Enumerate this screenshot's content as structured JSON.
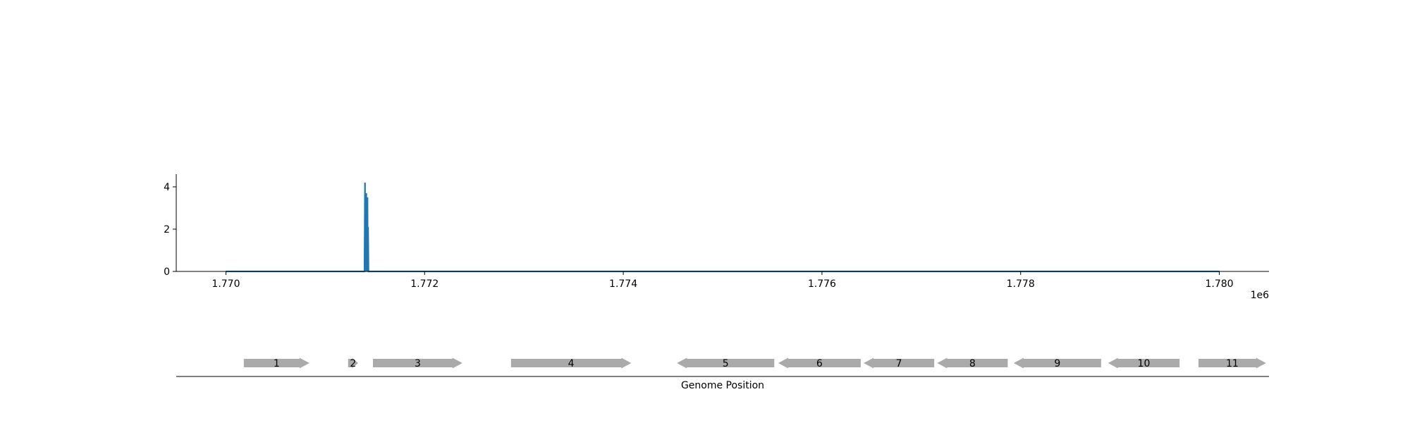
{
  "chart_data": [
    {
      "type": "line",
      "x_multiplier_label": "1e6",
      "x_ticks": [
        1770000,
        1772000,
        1774000,
        1776000,
        1778000,
        1780000
      ],
      "x_tick_labels": [
        "1.770",
        "1.772",
        "1.774",
        "1.776",
        "1.778",
        "1.780"
      ],
      "y_ticks": [
        0,
        2,
        4
      ],
      "y_tick_labels": [
        "0",
        "2",
        "4"
      ],
      "xlim": [
        1769500,
        1780500
      ],
      "ylim": [
        0,
        4.6
      ],
      "series": [
        {
          "color": "#1f77b4",
          "x": [
            1770000,
            1771395,
            1771400,
            1771403,
            1771406,
            1771410,
            1771413,
            1771416,
            1771419,
            1771422,
            1771425,
            1771428,
            1771431,
            1771435,
            1780000
          ],
          "y": [
            0,
            0,
            4.2,
            0,
            3.2,
            0,
            3.7,
            0,
            2.6,
            0,
            3.5,
            0,
            2.1,
            0,
            0
          ]
        }
      ]
    },
    {
      "type": "gene_track",
      "xlabel": "Genome Position",
      "xlim": [
        1769500,
        1780500
      ],
      "color": "#aaaaaa",
      "genes": [
        {
          "label": "1",
          "start": 1770180,
          "end": 1770840,
          "strand": "+"
        },
        {
          "label": "2",
          "start": 1771230,
          "end": 1771330,
          "strand": "+"
        },
        {
          "label": "3",
          "start": 1771480,
          "end": 1772380,
          "strand": "+"
        },
        {
          "label": "4",
          "start": 1772870,
          "end": 1774080,
          "strand": "+"
        },
        {
          "label": "5",
          "start": 1774540,
          "end": 1775520,
          "strand": "-"
        },
        {
          "label": "6",
          "start": 1775560,
          "end": 1776390,
          "strand": "-"
        },
        {
          "label": "7",
          "start": 1776420,
          "end": 1777130,
          "strand": "-"
        },
        {
          "label": "8",
          "start": 1777160,
          "end": 1777870,
          "strand": "-"
        },
        {
          "label": "9",
          "start": 1777930,
          "end": 1778810,
          "strand": "-"
        },
        {
          "label": "10",
          "start": 1778880,
          "end": 1779600,
          "strand": "-"
        },
        {
          "label": "11",
          "start": 1779790,
          "end": 1780470,
          "strand": "+"
        }
      ]
    }
  ]
}
